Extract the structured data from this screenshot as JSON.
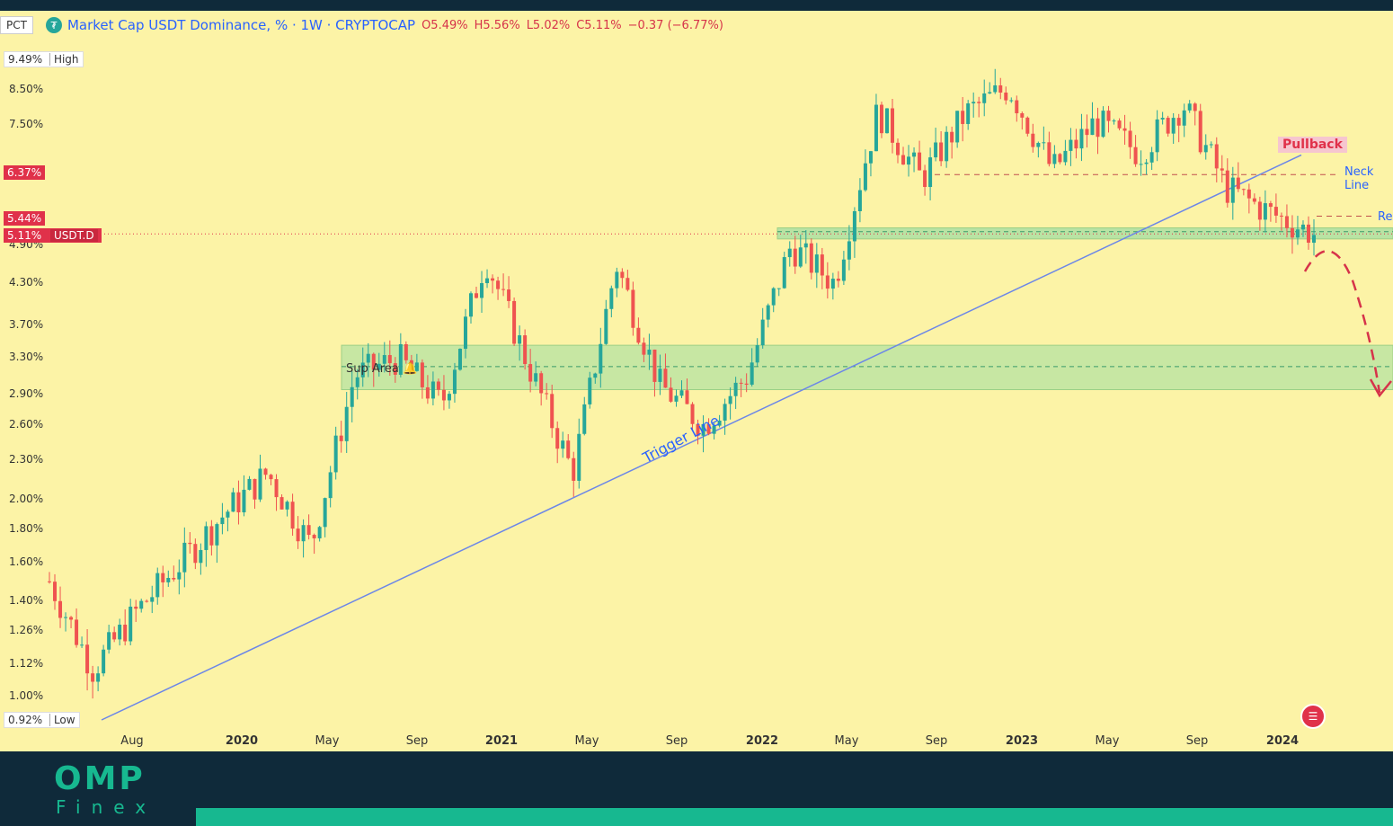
{
  "header": {
    "symbol_box": "PCT",
    "title": "Market Cap USDT Dominance, % · 1W · CRYPTOCAP",
    "open": "O5.49%",
    "high": "H5.56%",
    "low": "L5.02%",
    "close": "C5.11%",
    "change": "−0.37 (−6.77%)"
  },
  "price_axis": {
    "labels": [
      "8.50%",
      "7.50%",
      "4.90%",
      "4.30%",
      "3.70%",
      "3.30%",
      "2.90%",
      "2.60%",
      "2.30%",
      "2.00%",
      "1.80%",
      "1.60%",
      "1.40%",
      "1.26%",
      "1.12%",
      "1.00%"
    ],
    "high_value": "9.49%",
    "high_label": "High",
    "low_value": "0.92%",
    "low_label": "Low",
    "tag_current_a": "6.37%",
    "tag_current_b": "5.44%",
    "tag_last": "5.11%",
    "tag_symbol": "USDT.D"
  },
  "time_axis": [
    "Aug",
    "2020",
    "May",
    "Sep",
    "2021",
    "May",
    "Sep",
    "2022",
    "May",
    "Sep",
    "2023",
    "May",
    "Sep",
    "2024"
  ],
  "annotations": {
    "pullback": "Pullback",
    "neck_line": "Neck Line",
    "resistance": "Re",
    "sup_area": "Sup Area",
    "trigger_line": "Trigger Line"
  },
  "colors": {
    "background": "#fcf3a6",
    "up": "#26a69a",
    "down": "#ef5350",
    "zone": "#b9e3a3",
    "trend": "#6b86e8",
    "accent": "#17b890"
  },
  "footer": {
    "logo_main": "OMP",
    "logo_sub": "Finex"
  },
  "chart_data": {
    "type": "candlestick",
    "title": "Market Cap USDT Dominance, % · 1W · CRYPTOCAP",
    "scale": "log",
    "y_range": [
      0.92,
      9.49
    ],
    "x_range": [
      "2019-07",
      "2024-02"
    ],
    "series": [
      {
        "name": "USDT.D",
        "x": [
          "2019-07",
          "2019-08",
          "2019-10",
          "2019-12",
          "2020-02",
          "2020-03",
          "2020-05",
          "2020-07",
          "2020-09",
          "2020-11",
          "2021-01",
          "2021-03",
          "2021-05",
          "2021-07",
          "2021-09",
          "2021-11",
          "2022-01",
          "2022-03",
          "2022-05",
          "2022-07",
          "2022-09",
          "2022-11",
          "2023-01",
          "2023-03",
          "2023-05",
          "2023-07",
          "2023-09",
          "2023-11",
          "2024-01",
          "2024-02"
        ],
        "y": [
          1.5,
          1.1,
          1.35,
          1.6,
          1.9,
          2.2,
          1.7,
          3.1,
          3.3,
          2.8,
          4.7,
          3.2,
          2.2,
          4.6,
          3.0,
          2.6,
          3.1,
          4.9,
          4.3,
          7.9,
          6.2,
          7.8,
          8.6,
          6.4,
          7.6,
          6.8,
          8.1,
          6.0,
          5.5,
          5.11
        ]
      }
    ],
    "levels": [
      {
        "name": "Neck Line",
        "y": 6.3
      },
      {
        "name": "Re",
        "y": 5.44
      },
      {
        "name": "Sup Area",
        "y_range": [
          2.95,
          3.45
        ]
      }
    ]
  }
}
